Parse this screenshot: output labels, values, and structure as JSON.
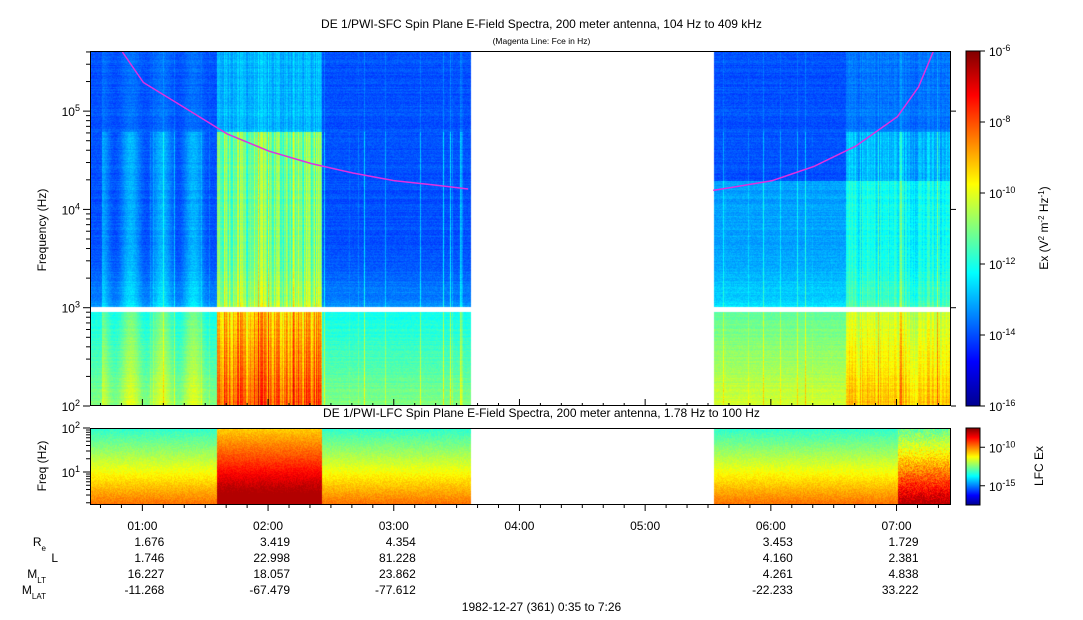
{
  "chart_data": [
    {
      "type": "heatmap",
      "title": "DE 1/PWI-SFC  Spin Plane E-Field Spectra, 200 meter antenna, 104 Hz to 409 kHz",
      "subtitle": "(Magenta Line: Fce in Hz)",
      "ylabel": "Frequency (Hz)",
      "yscale": "log",
      "ylim": [
        100,
        409000
      ],
      "y_ticks": [
        {
          "base": "10",
          "exp": "2"
        },
        {
          "base": "10",
          "exp": "3"
        },
        {
          "base": "10",
          "exp": "4"
        },
        {
          "base": "10",
          "exp": "5"
        }
      ],
      "colorbar": {
        "label_main": "Ex (V",
        "label_sup1": "2",
        "label_mid1": " m",
        "label_sup2": "-2",
        "label_mid2": " Hz",
        "label_sup3": "-1",
        "label_end": ")",
        "scale": "log",
        "range": [
          1e-16,
          1e-06
        ],
        "ticks": [
          {
            "base": "10",
            "exp": "-16"
          },
          {
            "base": "10",
            "exp": "-14"
          },
          {
            "base": "10",
            "exp": "-12"
          },
          {
            "base": "10",
            "exp": "-10"
          },
          {
            "base": "10",
            "exp": "-8"
          },
          {
            "base": "10",
            "exp": "-6"
          }
        ]
      },
      "data_gap": [
        "03:36",
        "05:32"
      ],
      "fce_line": {
        "color": "#e030e0",
        "points": [
          {
            "time": "00:50",
            "fce": 409000
          },
          {
            "time": "01:00",
            "fce": 200000
          },
          {
            "time": "01:20",
            "fce": 110000
          },
          {
            "time": "01:40",
            "fce": 60000
          },
          {
            "time": "02:00",
            "fce": 40000
          },
          {
            "time": "02:20",
            "fce": 30000
          },
          {
            "time": "02:40",
            "fce": 24000
          },
          {
            "time": "03:00",
            "fce": 20000
          },
          {
            "time": "03:20",
            "fce": 18000
          },
          {
            "time": "03:35",
            "fce": 16500
          },
          {
            "time": "05:32",
            "fce": 16000
          },
          {
            "time": "06:00",
            "fce": 20000
          },
          {
            "time": "06:20",
            "fce": 28000
          },
          {
            "time": "06:40",
            "fce": 45000
          },
          {
            "time": "07:00",
            "fce": 90000
          },
          {
            "time": "07:10",
            "fce": 180000
          },
          {
            "time": "07:17",
            "fce": 409000
          }
        ]
      }
    },
    {
      "type": "heatmap",
      "title": "DE 1/PWI-LFC  Spin Plane E-Field Spectra, 200 meter antenna, 1.78 Hz to 100 Hz",
      "ylabel": "Freq (Hz)",
      "yscale": "log",
      "ylim": [
        1.78,
        100
      ],
      "y_ticks": [
        {
          "base": "10",
          "exp": "1"
        },
        {
          "base": "10",
          "exp": "2"
        }
      ],
      "colorbar": {
        "label": "LFC Ex",
        "scale": "log",
        "ticks": [
          {
            "base": "10",
            "exp": "-15"
          },
          {
            "base": "10",
            "exp": "-10"
          }
        ]
      },
      "data_gap": [
        "03:36",
        "05:32"
      ]
    }
  ],
  "x_axis": {
    "time_range": [
      "00:35",
      "07:26"
    ],
    "tick_labels": [
      "01:00",
      "02:00",
      "03:00",
      "04:00",
      "05:00",
      "06:00",
      "07:00"
    ]
  },
  "ephemeris": {
    "rows": [
      {
        "label": "R",
        "sub": "e",
        "values": [
          "1.676",
          "3.419",
          "4.354",
          "",
          "",
          "3.453",
          "1.729"
        ]
      },
      {
        "label": "L",
        "sub": "",
        "values": [
          "1.746",
          "22.998",
          "81.228",
          "",
          "",
          "4.160",
          "2.381"
        ]
      },
      {
        "label": "M",
        "sub": "LT",
        "values": [
          "16.227",
          "18.057",
          "23.862",
          "",
          "",
          "4.261",
          "4.838"
        ]
      },
      {
        "label": "M",
        "sub": "LAT",
        "values": [
          "-11.268",
          "-67.479",
          "-77.612",
          "",
          "",
          "-22.233",
          "33.222"
        ]
      }
    ]
  },
  "footer": "1982-12-27 (361) 0:35 to 7:26"
}
